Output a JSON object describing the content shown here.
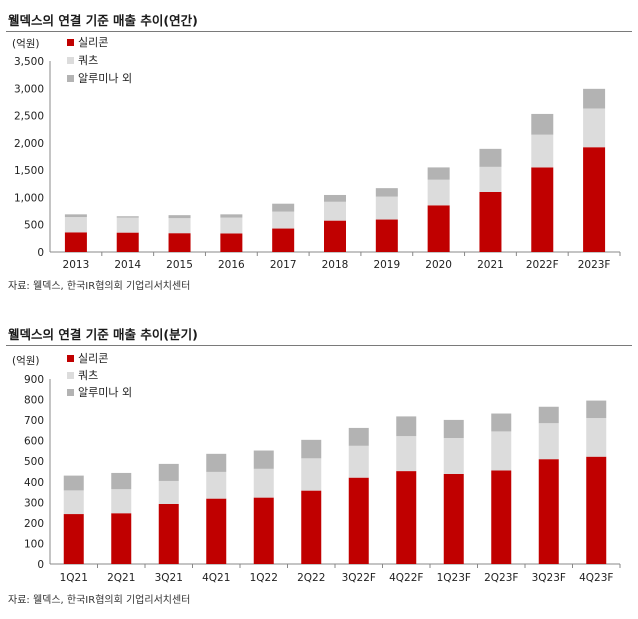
{
  "panels": [
    {
      "title": "웰덱스의 연결 기준 매출 추이(연간)",
      "source": "자료: 웰덱스, 한국IR협의회 기업리서치센터",
      "chart_data": {
        "type": "bar",
        "stacked": true,
        "unit_label": "(억원)",
        "categories": [
          "2013",
          "2014",
          "2015",
          "2016",
          "2017",
          "2018",
          "2019",
          "2020",
          "2021",
          "2022F",
          "2023F"
        ],
        "series": [
          {
            "name": "실리콘",
            "color": "#c00000",
            "values": [
              360,
              355,
              345,
              340,
              430,
              575,
              595,
              855,
              1100,
              1550,
              1920
            ]
          },
          {
            "name": "쿼츠",
            "color": "#dcdcdc",
            "values": [
              280,
              275,
              275,
              290,
              310,
              345,
              420,
              470,
              460,
              600,
              710
            ]
          },
          {
            "name": "알루미나 외",
            "color": "#b3b3b3",
            "values": [
              50,
              25,
              55,
              60,
              145,
              125,
              155,
              225,
              330,
              380,
              360
            ]
          }
        ],
        "ylim": [
          0,
          3500
        ],
        "yticks": [
          "0",
          "500",
          "1,000",
          "1,500",
          "2,000",
          "2,500",
          "3,000",
          "3,500"
        ],
        "legend_position": "top-left",
        "grid": false
      }
    },
    {
      "title": "웰덱스의 연결 기준 매출 추이(분기)",
      "source": "자료: 웰덱스, 한국IR협의회 기업리서치센터",
      "chart_data": {
        "type": "bar",
        "stacked": true,
        "unit_label": "(억원)",
        "categories": [
          "1Q21",
          "2Q21",
          "3Q21",
          "4Q21",
          "1Q22",
          "2Q22",
          "3Q22F",
          "4Q22F",
          "1Q23F",
          "2Q23F",
          "3Q23F",
          "4Q23F"
        ],
        "series": [
          {
            "name": "실리콘",
            "color": "#c00000",
            "values": [
              243,
              247,
              292,
              318,
              323,
              357,
              420,
              452,
              438,
              455,
              510,
              522
            ]
          },
          {
            "name": "쿼츠",
            "color": "#dcdcdc",
            "values": [
              115,
              117,
              112,
              130,
              140,
              157,
              155,
              170,
              175,
              190,
              175,
              188
            ]
          },
          {
            "name": "알루미나 외",
            "color": "#b3b3b3",
            "values": [
              72,
              79,
              83,
              88,
              89,
              90,
              87,
              96,
              88,
              87,
              80,
              85
            ]
          }
        ],
        "ylim": [
          0,
          900
        ],
        "yticks": [
          "0",
          "100",
          "200",
          "300",
          "400",
          "500",
          "600",
          "700",
          "800",
          "900"
        ],
        "legend_position": "top-left",
        "grid": false
      }
    }
  ]
}
